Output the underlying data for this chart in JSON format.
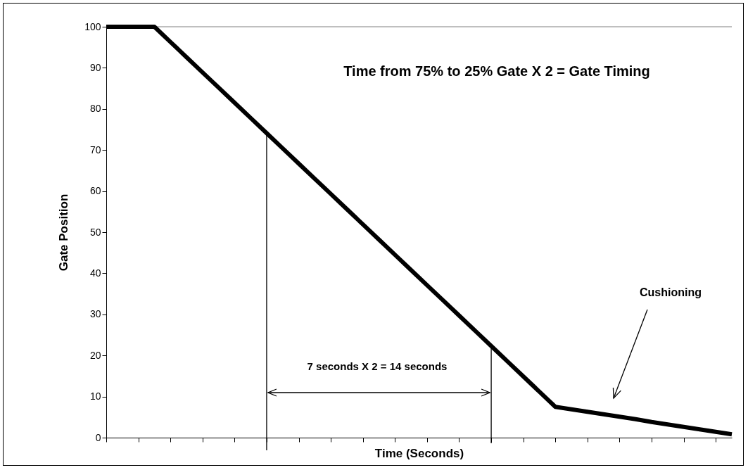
{
  "chart_data": {
    "type": "line",
    "xlabel": "Time (Seconds)",
    "ylabel": "Gate Position",
    "line_style": "solid",
    "categories": [
      null,
      null,
      null,
      null,
      null,
      null,
      null,
      null,
      null,
      null,
      null,
      null,
      null,
      null,
      null,
      null,
      null,
      null,
      null,
      null,
      null,
      null,
      null,
      null,
      null,
      null,
      null,
      null,
      null,
      null,
      null,
      null,
      null,
      null,
      null,
      null,
      null,
      null,
      null,
      null
    ],
    "series": [
      {
        "color": "#000000",
        "values": [
          100,
          100,
          100,
          100,
          96.3,
          92.6,
          88.9,
          85.2,
          81.5,
          77.8,
          74.1,
          70.4,
          66.7,
          63,
          59.3,
          55.6,
          51.9,
          48.2,
          44.5,
          40.8,
          37.1,
          33.4,
          29.7,
          26,
          22.3,
          18.6,
          14.9,
          11.2,
          7.5,
          6.9,
          6.3,
          5.7,
          5.1,
          4.5,
          3.8,
          3.2,
          2.6,
          2.0,
          1.4,
          0.8
        ]
      }
    ],
    "ylim": [
      0,
      100
    ],
    "yticks": [
      0,
      10,
      20,
      30,
      40,
      50,
      60,
      70,
      80,
      90,
      100
    ],
    "ref_lines": [
      {
        "axis": "y",
        "value": 100,
        "color": "#808080"
      }
    ],
    "annotations": [
      "Time from 75% to 25% Gate X 2 = Gate Timing",
      "7 seconds X 2 = 14 seconds",
      "Cushioning"
    ]
  }
}
